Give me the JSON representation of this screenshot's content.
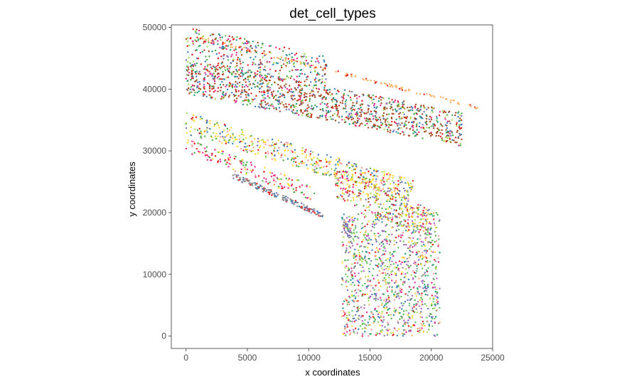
{
  "chart_data": {
    "type": "scatter",
    "title": "det_cell_types",
    "xlabel": "x coordinates",
    "ylabel": "y coordinates",
    "xlim": [
      -1200,
      25000
    ],
    "ylim": [
      -2000,
      50400
    ],
    "x_ticks": [
      0,
      5000,
      10000,
      15000,
      20000,
      25000
    ],
    "x_tick_labels": [
      "0",
      "5000",
      "10000",
      "15000",
      "20000",
      "25000"
    ],
    "y_ticks": [
      0,
      10000,
      20000,
      30000,
      40000,
      50000
    ],
    "y_tick_labels": [
      "0",
      "10000",
      "20000",
      "30000",
      "40000",
      "50000"
    ],
    "grid": false,
    "legend": "none",
    "colors": {
      "orange": "#fdae61",
      "brown": "#a6461f",
      "green": "#4daf4a",
      "red": "#e41a1c",
      "blue": "#377eb8",
      "purple": "#7570b3",
      "yellow": "#ffd92f",
      "lightgreen": "#a6d854",
      "pink": "#fb9a99",
      "magenta": "#e7298a",
      "gray": "#8c8c8c",
      "teal": "#1b9e77",
      "violet": "#b163c4",
      "midgreen": "#66c266"
    },
    "regions": [
      {
        "x": [
          900,
          23800
        ],
        "y": [
          48400,
          37000
        ],
        "thickness": 500,
        "count": 140,
        "colors": [
          "orange",
          "orange",
          "orange",
          "orange",
          "red"
        ]
      },
      {
        "x": [
          0,
          11500
        ],
        "y": [
          47500,
          42500
        ],
        "thickness": 5500,
        "count": 350,
        "colors": [
          "green",
          "red",
          "blue",
          "purple",
          "brown",
          "lightgreen",
          "teal",
          "magenta"
        ]
      },
      {
        "x": [
          0,
          22500
        ],
        "y": [
          42000,
          33500
        ],
        "thickness": 5500,
        "count": 1200,
        "colors": [
          "brown",
          "brown",
          "brown",
          "red",
          "green",
          "purple",
          "brown",
          "blue",
          "magenta",
          "teal",
          "lightgreen"
        ]
      },
      {
        "x": [
          0,
          18500
        ],
        "y": [
          34500,
          23500
        ],
        "thickness": 3500,
        "count": 500,
        "colors": [
          "yellow",
          "yellow",
          "yellow",
          "lightgreen",
          "pink",
          "green",
          "red",
          "purple",
          "blue"
        ]
      },
      {
        "x": [
          0,
          10500
        ],
        "y": [
          31000,
          23000
        ],
        "thickness": 2500,
        "count": 160,
        "colors": [
          "magenta",
          "magenta",
          "red",
          "yellow",
          "pink",
          "green"
        ]
      },
      {
        "x": [
          3800,
          11200
        ],
        "y": [
          26000,
          19500
        ],
        "thickness": 900,
        "count": 170,
        "colors": [
          "gray",
          "gray",
          "gray",
          "blue",
          "purple",
          "red"
        ]
      },
      {
        "x": [
          12200,
          20000
        ],
        "y": [
          25000,
          18000
        ],
        "thickness": 5000,
        "count": 320,
        "colors": [
          "yellow",
          "yellow",
          "red",
          "purple",
          "green",
          "brown",
          "magenta",
          "lightgreen",
          "orange"
        ]
      },
      {
        "x": [
          12800,
          13500
        ],
        "y": [
          18500,
          16000
        ],
        "thickness": 2000,
        "count": 40,
        "colors": [
          "gray",
          "gray",
          "purple"
        ]
      },
      {
        "x": [
          12700,
          20700
        ],
        "y": [
          10000,
          10000
        ],
        "thickness": 20000,
        "count": 1100,
        "colors": [
          "violet",
          "violet",
          "midgreen",
          "midgreen",
          "lightgreen",
          "green",
          "purple",
          "red",
          "pink",
          "orange",
          "blue",
          "teal",
          "gray",
          "magenta",
          "yellow"
        ]
      }
    ]
  }
}
